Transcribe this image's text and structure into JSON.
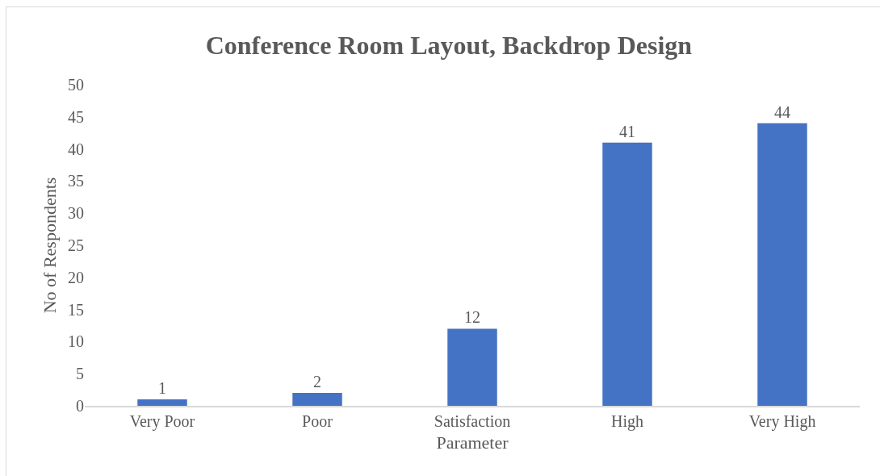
{
  "chart_data": {
    "type": "bar",
    "title": "Conference Room Layout, Backdrop Design",
    "xlabel": "Parameter",
    "ylabel": "No of Respondents",
    "categories": [
      "Very Poor",
      "Poor",
      "Satisfaction",
      "High",
      "Very High"
    ],
    "values": [
      1,
      2,
      12,
      41,
      44
    ],
    "color": "#4472c4",
    "ylim": [
      0,
      50
    ],
    "yticks": [
      0,
      5,
      10,
      15,
      20,
      25,
      30,
      35,
      40,
      45,
      50
    ],
    "grid": false,
    "data_labels": true
  }
}
